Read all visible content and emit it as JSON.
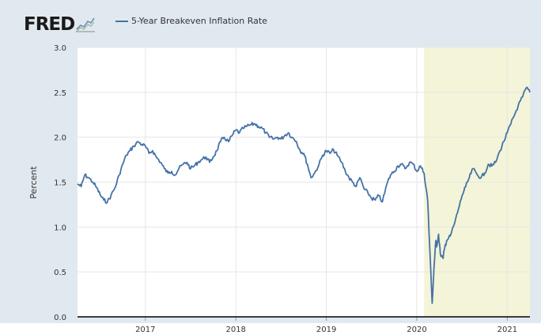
{
  "logo": {
    "text": "FRED",
    "icon": "chart-logo-icon"
  },
  "colors": {
    "series": "#4572a7",
    "recession": "#f4f4d8",
    "background": "#e1e9f0"
  },
  "chart_data": {
    "type": "line",
    "title": "",
    "ylabel": "Percent",
    "xlabel": "",
    "xlim": [
      2016.25,
      2021.25
    ],
    "ylim": [
      0,
      3
    ],
    "grid": true,
    "legend": "top-left",
    "yticks": [
      {
        "value": 0,
        "label": "0.0"
      },
      {
        "value": 0.5,
        "label": "0.5"
      },
      {
        "value": 1,
        "label": "1.0"
      },
      {
        "value": 1.5,
        "label": "1.5"
      },
      {
        "value": 2,
        "label": "2.0"
      },
      {
        "value": 2.5,
        "label": "2.5"
      },
      {
        "value": 3,
        "label": "3.0"
      }
    ],
    "xticks": [
      {
        "value": 2017,
        "label": "2017"
      },
      {
        "value": 2018,
        "label": "2018"
      },
      {
        "value": 2019,
        "label": "2019"
      },
      {
        "value": 2020,
        "label": "2020"
      },
      {
        "value": 2021,
        "label": "2021"
      }
    ],
    "shaded_region": {
      "label": "recession",
      "from": 2020.08,
      "to": 2021.25
    },
    "series": [
      {
        "name": "5-Year Breakeven Inflation Rate",
        "x": [
          2016.25,
          2016.29,
          2016.33,
          2016.37,
          2016.42,
          2016.46,
          2016.5,
          2016.54,
          2016.58,
          2016.62,
          2016.67,
          2016.71,
          2016.75,
          2016.79,
          2016.83,
          2016.87,
          2016.92,
          2016.96,
          2017.0,
          2017.04,
          2017.08,
          2017.12,
          2017.17,
          2017.21,
          2017.25,
          2017.29,
          2017.33,
          2017.37,
          2017.42,
          2017.46,
          2017.5,
          2017.54,
          2017.58,
          2017.62,
          2017.67,
          2017.71,
          2017.75,
          2017.79,
          2017.83,
          2017.87,
          2017.92,
          2017.96,
          2018.0,
          2018.04,
          2018.08,
          2018.12,
          2018.17,
          2018.21,
          2018.25,
          2018.29,
          2018.33,
          2018.37,
          2018.42,
          2018.46,
          2018.5,
          2018.54,
          2018.58,
          2018.62,
          2018.67,
          2018.71,
          2018.75,
          2018.79,
          2018.83,
          2018.87,
          2018.92,
          2018.96,
          2019.0,
          2019.04,
          2019.08,
          2019.12,
          2019.17,
          2019.21,
          2019.25,
          2019.29,
          2019.33,
          2019.37,
          2019.42,
          2019.46,
          2019.5,
          2019.54,
          2019.58,
          2019.62,
          2019.67,
          2019.71,
          2019.75,
          2019.79,
          2019.83,
          2019.87,
          2019.92,
          2019.96,
          2020.0,
          2020.04,
          2020.08,
          2020.12,
          2020.15,
          2020.17,
          2020.19,
          2020.21,
          2020.22,
          2020.24,
          2020.26,
          2020.29,
          2020.31,
          2020.33,
          2020.37,
          2020.42,
          2020.46,
          2020.5,
          2020.54,
          2020.58,
          2020.62,
          2020.67,
          2020.71,
          2020.75,
          2020.79,
          2020.83,
          2020.87,
          2020.92,
          2020.96,
          2021.0,
          2021.04,
          2021.08,
          2021.12,
          2021.17,
          2021.21,
          2021.25
        ],
        "y": [
          1.48,
          1.45,
          1.58,
          1.55,
          1.5,
          1.44,
          1.36,
          1.3,
          1.28,
          1.35,
          1.45,
          1.58,
          1.7,
          1.8,
          1.85,
          1.9,
          1.95,
          1.92,
          1.9,
          1.82,
          1.85,
          1.78,
          1.72,
          1.65,
          1.6,
          1.62,
          1.58,
          1.65,
          1.7,
          1.72,
          1.65,
          1.68,
          1.72,
          1.75,
          1.78,
          1.72,
          1.78,
          1.85,
          1.95,
          2.0,
          1.95,
          2.02,
          2.08,
          2.05,
          2.1,
          2.12,
          2.14,
          2.15,
          2.12,
          2.1,
          2.05,
          2.0,
          1.98,
          2.0,
          1.98,
          2.02,
          2.05,
          2.0,
          1.95,
          1.85,
          1.82,
          1.7,
          1.55,
          1.6,
          1.7,
          1.8,
          1.85,
          1.82,
          1.86,
          1.8,
          1.72,
          1.62,
          1.55,
          1.5,
          1.45,
          1.55,
          1.42,
          1.38,
          1.32,
          1.3,
          1.35,
          1.28,
          1.48,
          1.58,
          1.62,
          1.68,
          1.7,
          1.65,
          1.72,
          1.7,
          1.62,
          1.68,
          1.6,
          1.3,
          0.6,
          0.15,
          0.55,
          0.85,
          0.78,
          0.92,
          0.7,
          0.65,
          0.78,
          0.85,
          0.9,
          1.05,
          1.2,
          1.35,
          1.45,
          1.55,
          1.65,
          1.58,
          1.55,
          1.6,
          1.7,
          1.68,
          1.72,
          1.85,
          1.95,
          2.05,
          2.15,
          2.25,
          2.35,
          2.45,
          2.55,
          2.5
        ]
      }
    ]
  }
}
